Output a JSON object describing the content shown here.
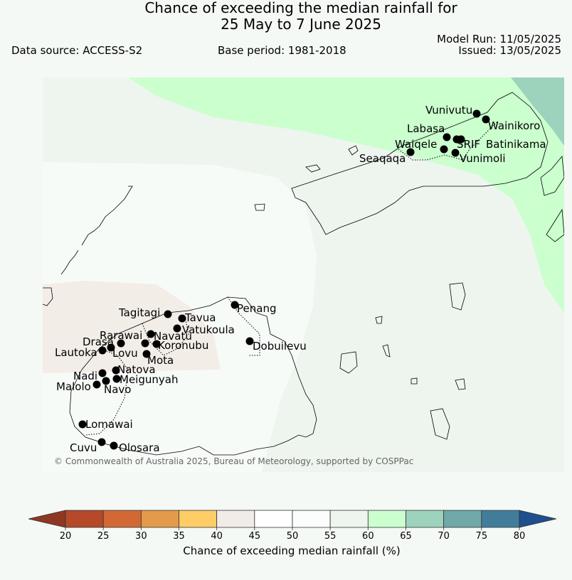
{
  "title_line1": "Chance of exceeding the median rainfall for",
  "title_line2": "25 May to 7 June 2025",
  "data_source": "Data source: ACCESS-S2",
  "base_period": "Base period: 1981-2018",
  "model_run": "Model Run: 11/05/2025",
  "issued": "Issued: 13/05/2025",
  "copyright": "© Commonwealth of Australia 2025, Bureau of Meteorology, supported by COSPPac",
  "colorbar": {
    "title": "Chance of exceeding median rainfall (%)",
    "ticks": [
      "20",
      "25",
      "30",
      "35",
      "40",
      "45",
      "50",
      "55",
      "60",
      "65",
      "70",
      "75",
      "80"
    ],
    "colors": [
      "#b5492a",
      "#d26935",
      "#e39a4b",
      "#fecd66",
      "#f2ece8",
      "#ffffff",
      "#fbfdfc",
      "#edf5ee",
      "#cbffce",
      "#9dd2bd",
      "#71a8a8",
      "#417d9b"
    ],
    "under_color": "#8e3822",
    "over_color": "#1f4f8c"
  },
  "legend_colors": {
    "band_45_50": "#f3ede8",
    "band_55_60": "#edf5ee",
    "band_60_65": "#cbffce",
    "band_65_70": "#9dd2bd",
    "band_50_55": "#f7fbf8"
  },
  "cities": [
    {
      "name": "Vunivutu"
    },
    {
      "name": "Wainikoro"
    },
    {
      "name": "Labasa"
    },
    {
      "name": "Waiqele"
    },
    {
      "name": "SRIF"
    },
    {
      "name": "Batinikama"
    },
    {
      "name": "Seaqaqa"
    },
    {
      "name": "Vunimoli"
    },
    {
      "name": "Penang"
    },
    {
      "name": "Tagitagi"
    },
    {
      "name": "Tavua"
    },
    {
      "name": "Vatukoula"
    },
    {
      "name": "Rarawai"
    },
    {
      "name": "Navatu"
    },
    {
      "name": "Drasa"
    },
    {
      "name": "Koronubu"
    },
    {
      "name": "Dobuilevu"
    },
    {
      "name": "Lautoka"
    },
    {
      "name": "Lovu"
    },
    {
      "name": "Mota"
    },
    {
      "name": "Natova"
    },
    {
      "name": "Nadi"
    },
    {
      "name": "Meigunyah"
    },
    {
      "name": "Malolo"
    },
    {
      "name": "Navo"
    },
    {
      "name": "Lomawai"
    },
    {
      "name": "Cuvu"
    },
    {
      "name": "Olosara"
    }
  ]
}
